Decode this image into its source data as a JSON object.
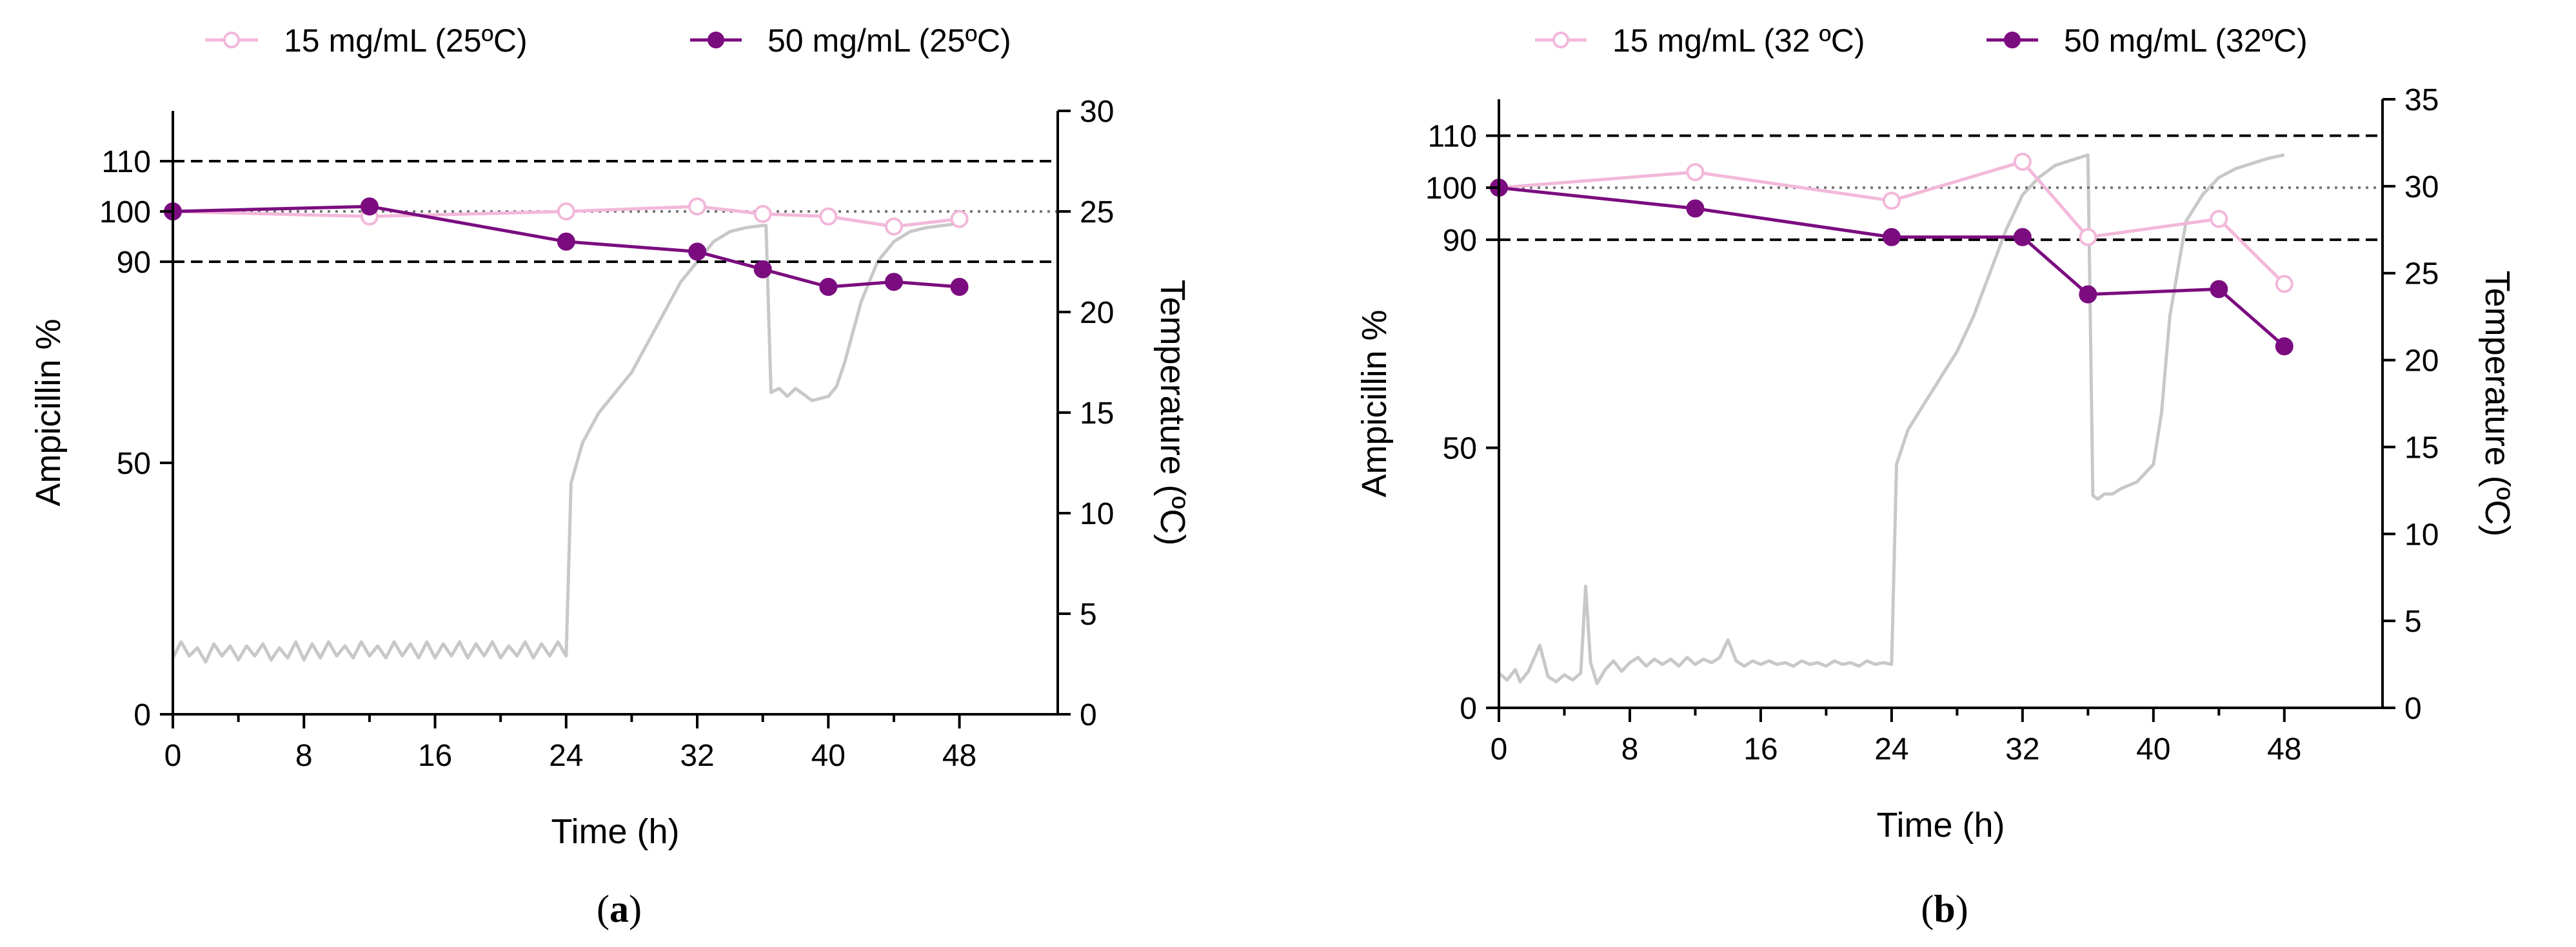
{
  "colors": {
    "series15": "#f2b8da",
    "series50": "#7b0c7f",
    "temperature": "#c8c8c8",
    "refline": "#000000"
  },
  "chart_data": [
    {
      "panel": "a",
      "panel_label": {
        "open": "(",
        "letter": "a",
        "close": ")"
      },
      "type": "line",
      "xlabel": "Time (h)",
      "ylabel": "Ampicillin %",
      "y2label": "Temperature (ºC)",
      "xlim": [
        0,
        54
      ],
      "xticks": [
        0,
        8,
        16,
        24,
        32,
        40,
        48
      ],
      "xminor_step": 4,
      "ylim": [
        0,
        120
      ],
      "yticks": [
        0,
        50,
        90,
        100,
        110
      ],
      "y2lim": [
        0,
        30
      ],
      "y2ticks": [
        0,
        5,
        10,
        15,
        20,
        25,
        30
      ],
      "reference_lines": [
        {
          "y": 110,
          "style": "dashed"
        },
        {
          "y": 90,
          "style": "dashed"
        },
        {
          "y": 100,
          "style": "dotted"
        }
      ],
      "legend_position": "top",
      "series": [
        {
          "name": "15 mg/mL (25ºC)",
          "marker": "open",
          "x": [
            0,
            12,
            24,
            32,
            36,
            40,
            44,
            48
          ],
          "y": [
            100,
            99,
            100,
            101,
            99.5,
            99,
            97,
            98.5
          ]
        },
        {
          "name": "50 mg/mL (25ºC)",
          "marker": "filled",
          "x": [
            0,
            12,
            24,
            32,
            36,
            40,
            44,
            48
          ],
          "y": [
            100,
            101,
            94,
            92,
            88.5,
            85,
            86,
            85
          ]
        }
      ],
      "temperature": {
        "name": "Temperature",
        "x": [
          0,
          0.5,
          1,
          1.5,
          2,
          2.5,
          3,
          3.5,
          4,
          4.5,
          5,
          5.5,
          6,
          6.5,
          7,
          7.5,
          8,
          8.5,
          9,
          9.5,
          10,
          10.5,
          11,
          11.5,
          12,
          12.5,
          13,
          13.5,
          14,
          14.5,
          15,
          15.5,
          16,
          16.5,
          17,
          17.5,
          18,
          18.5,
          19,
          19.5,
          20,
          20.5,
          21,
          21.5,
          22,
          22.5,
          23,
          23.5,
          24,
          24.3,
          25,
          26,
          27,
          28,
          29,
          30,
          31,
          32,
          33,
          34,
          35,
          36,
          36.2,
          36.5,
          37,
          37.5,
          38,
          39,
          40,
          40.5,
          41,
          42,
          43,
          44,
          45,
          46,
          47,
          48
        ],
        "y": [
          2.8,
          3.6,
          2.9,
          3.3,
          2.6,
          3.5,
          2.9,
          3.4,
          2.7,
          3.4,
          2.9,
          3.5,
          2.7,
          3.3,
          2.8,
          3.6,
          2.7,
          3.5,
          2.8,
          3.6,
          2.9,
          3.4,
          2.8,
          3.6,
          2.9,
          3.4,
          2.8,
          3.6,
          2.9,
          3.5,
          2.8,
          3.6,
          2.8,
          3.5,
          2.9,
          3.6,
          2.8,
          3.5,
          2.9,
          3.6,
          2.8,
          3.4,
          2.9,
          3.6,
          2.8,
          3.5,
          2.9,
          3.6,
          2.9,
          11.5,
          13.5,
          15,
          16,
          17,
          18.5,
          20,
          21.5,
          22.5,
          23.5,
          24,
          24.2,
          24.3,
          24.3,
          16,
          16.2,
          15.8,
          16.2,
          15.6,
          15.8,
          16.3,
          17.5,
          20.5,
          22.5,
          23.5,
          24,
          24.2,
          24.3,
          24.4
        ]
      }
    },
    {
      "panel": "b",
      "panel_label": {
        "open": "(",
        "letter": "b",
        "close": ")"
      },
      "type": "line",
      "xlabel": "Time (h)",
      "ylabel": "Ampicillin %",
      "y2label": "Temperature (ºC)",
      "xlim": [
        0,
        54
      ],
      "xticks": [
        0,
        8,
        16,
        24,
        32,
        40,
        48
      ],
      "xminor_step": 4,
      "ylim": [
        0,
        117
      ],
      "yticks": [
        0,
        50,
        90,
        100,
        110
      ],
      "y2lim": [
        0,
        35
      ],
      "y2ticks": [
        0,
        5,
        10,
        15,
        20,
        25,
        30,
        35
      ],
      "reference_lines": [
        {
          "y": 110,
          "style": "dashed"
        },
        {
          "y": 90,
          "style": "dashed"
        },
        {
          "y": 100,
          "style": "dotted"
        }
      ],
      "legend_position": "top",
      "series": [
        {
          "name": "15 mg/mL (32 ºC)",
          "marker": "open",
          "x": [
            0,
            12,
            24,
            32,
            36,
            44,
            48
          ],
          "y": [
            100,
            103,
            97.5,
            105,
            90.5,
            94,
            81.5
          ]
        },
        {
          "name": "50 mg/mL (32ºC)",
          "marker": "filled",
          "x": [
            0,
            12,
            24,
            32,
            36,
            44,
            48
          ],
          "y": [
            100,
            96,
            90.5,
            90.5,
            79.5,
            80.5,
            69.5
          ]
        }
      ],
      "temperature": {
        "name": "Temperature",
        "x": [
          0,
          0.5,
          1,
          1.3,
          1.8,
          2.5,
          3,
          3.5,
          4,
          4.5,
          5,
          5.3,
          5.6,
          6,
          6.5,
          7,
          7.5,
          8,
          8.5,
          9,
          9.5,
          10,
          10.5,
          11,
          11.5,
          12,
          12.5,
          13,
          13.5,
          14,
          14.5,
          15,
          15.5,
          16,
          16.5,
          17,
          17.5,
          18,
          18.5,
          19,
          19.5,
          20,
          20.5,
          21,
          21.5,
          22,
          22.5,
          23,
          23.5,
          24,
          24.3,
          25,
          26,
          27,
          28,
          29,
          30,
          31,
          32,
          33,
          34,
          35,
          36,
          36.3,
          36.6,
          37,
          37.5,
          38,
          39,
          40,
          40.5,
          41,
          42,
          43,
          44,
          45,
          46,
          47,
          48
        ],
        "y": [
          2,
          1.6,
          2.2,
          1.5,
          2.1,
          3.6,
          1.8,
          1.5,
          1.9,
          1.6,
          2,
          7,
          2.6,
          1.4,
          2.2,
          2.7,
          2.1,
          2.6,
          2.9,
          2.4,
          2.8,
          2.5,
          2.8,
          2.4,
          2.9,
          2.5,
          2.8,
          2.6,
          2.9,
          3.9,
          2.7,
          2.4,
          2.7,
          2.5,
          2.7,
          2.5,
          2.6,
          2.4,
          2.7,
          2.5,
          2.6,
          2.4,
          2.7,
          2.5,
          2.6,
          2.4,
          2.7,
          2.5,
          2.6,
          2.5,
          14,
          16,
          17.5,
          19,
          20.5,
          22.5,
          25,
          27.5,
          29.5,
          30.5,
          31.2,
          31.5,
          31.8,
          12.2,
          12,
          12.3,
          12.3,
          12.6,
          13,
          14,
          17,
          22.5,
          28,
          29.5,
          30.5,
          31,
          31.3,
          31.6,
          31.8
        ]
      }
    }
  ]
}
